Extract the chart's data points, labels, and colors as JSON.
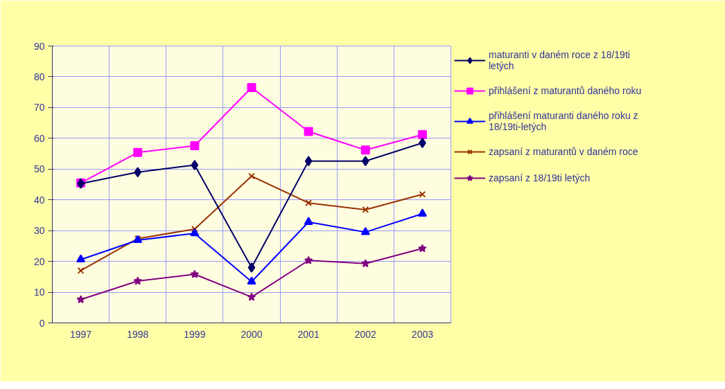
{
  "chart_data": {
    "type": "line",
    "categories": [
      "1997",
      "1998",
      "1999",
      "2000",
      "2001",
      "2002",
      "2003"
    ],
    "ylim": [
      0,
      90
    ],
    "yticks": [
      0,
      10,
      20,
      30,
      40,
      50,
      60,
      70,
      80,
      90
    ],
    "grid": true,
    "legend": "right",
    "series": [
      {
        "name": "maturanti v daném roce z 18/19ti\nletých",
        "color": "#000066",
        "marker": "diamond",
        "values": [
          45.3,
          49,
          51.3,
          18,
          52.6,
          52.6,
          58.5
        ]
      },
      {
        "name": "přihlášení z maturantů daného roku",
        "color": "#ff00ff",
        "marker": "square",
        "values": [
          45.5,
          55.4,
          57.6,
          76.5,
          62.2,
          56.2,
          61.2
        ]
      },
      {
        "name": "přihlášení maturanti daného roku z\n18/19ti-letých",
        "color": "#0000ff",
        "marker": "triangle",
        "values": [
          20.6,
          26.9,
          29.1,
          13.4,
          32.8,
          29.5,
          35.5
        ]
      },
      {
        "name": "zapsaní z maturantů v daném roce",
        "color": "#993300",
        "marker": "cross",
        "values": [
          17,
          27.4,
          30.5,
          47.7,
          39,
          36.8,
          41.8
        ]
      },
      {
        "name": "zapsaní z 18/19ti letých",
        "color": "#800080",
        "marker": "star",
        "values": [
          7.6,
          13.6,
          15.8,
          8.4,
          20.3,
          19.3,
          24.2
        ]
      }
    ]
  }
}
